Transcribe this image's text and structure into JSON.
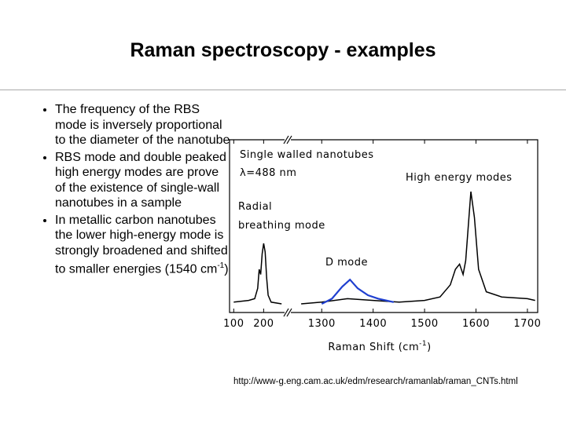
{
  "title": "Raman spectroscopy - examples",
  "bullets": [
    "The frequency of the RBS mode is inversely proportional to the diameter of the nanotube",
    "RBS mode and double peaked high energy modes are prove of the existence of single-wall nanotubes in a sample",
    {
      "text": "In metallic carbon nanotubes the lower high-energy mode is strongly broadened and shifted to smaller energies (1540 cm",
      "sup": "-1",
      "end": ")"
    }
  ],
  "source": "http://www-g.eng.cam.ac.uk/edm/research/ramanlab/raman_CNTs.html",
  "chart_data": {
    "type": "line",
    "annotations": [
      "Single walled nanotubes",
      "λ=488 nm",
      "High energy modes",
      "Radial",
      "breathing mode",
      "D mode"
    ],
    "xlabel": {
      "text": "Raman Shift (cm",
      "sup": "-1",
      "end": ")"
    },
    "xlim": [
      86,
      1720
    ],
    "axis_break": [
      270,
      1240
    ],
    "xticks": [
      100,
      200,
      1300,
      1400,
      1500,
      1600,
      1700
    ],
    "ylim": [
      0,
      100
    ],
    "series": [
      {
        "color": "#000000",
        "x": [
          100,
          150,
          170,
          180,
          185,
          190,
          195,
          200,
          205,
          210,
          215,
          225,
          260,
          700,
          1260,
          1300,
          1350,
          1400,
          1450,
          1500,
          1530,
          1550,
          1560,
          1568,
          1575,
          1580,
          1590,
          1597,
          1605,
          1620,
          1650,
          1700,
          1715
        ],
        "values": [
          6,
          7,
          8,
          14,
          25,
          22,
          34,
          40,
          35,
          20,
          10,
          6,
          5,
          null,
          5,
          6,
          8,
          7,
          6,
          7,
          9,
          16,
          25,
          28,
          22,
          30,
          70,
          55,
          25,
          12,
          9,
          8,
          7
        ]
      },
      {
        "color": "#1f3fd0",
        "x": [
          1300,
          1320,
          1340,
          1355,
          1370,
          1390,
          1410,
          1440
        ],
        "values": [
          5,
          8,
          15,
          19,
          14,
          10,
          8,
          6
        ]
      }
    ]
  }
}
